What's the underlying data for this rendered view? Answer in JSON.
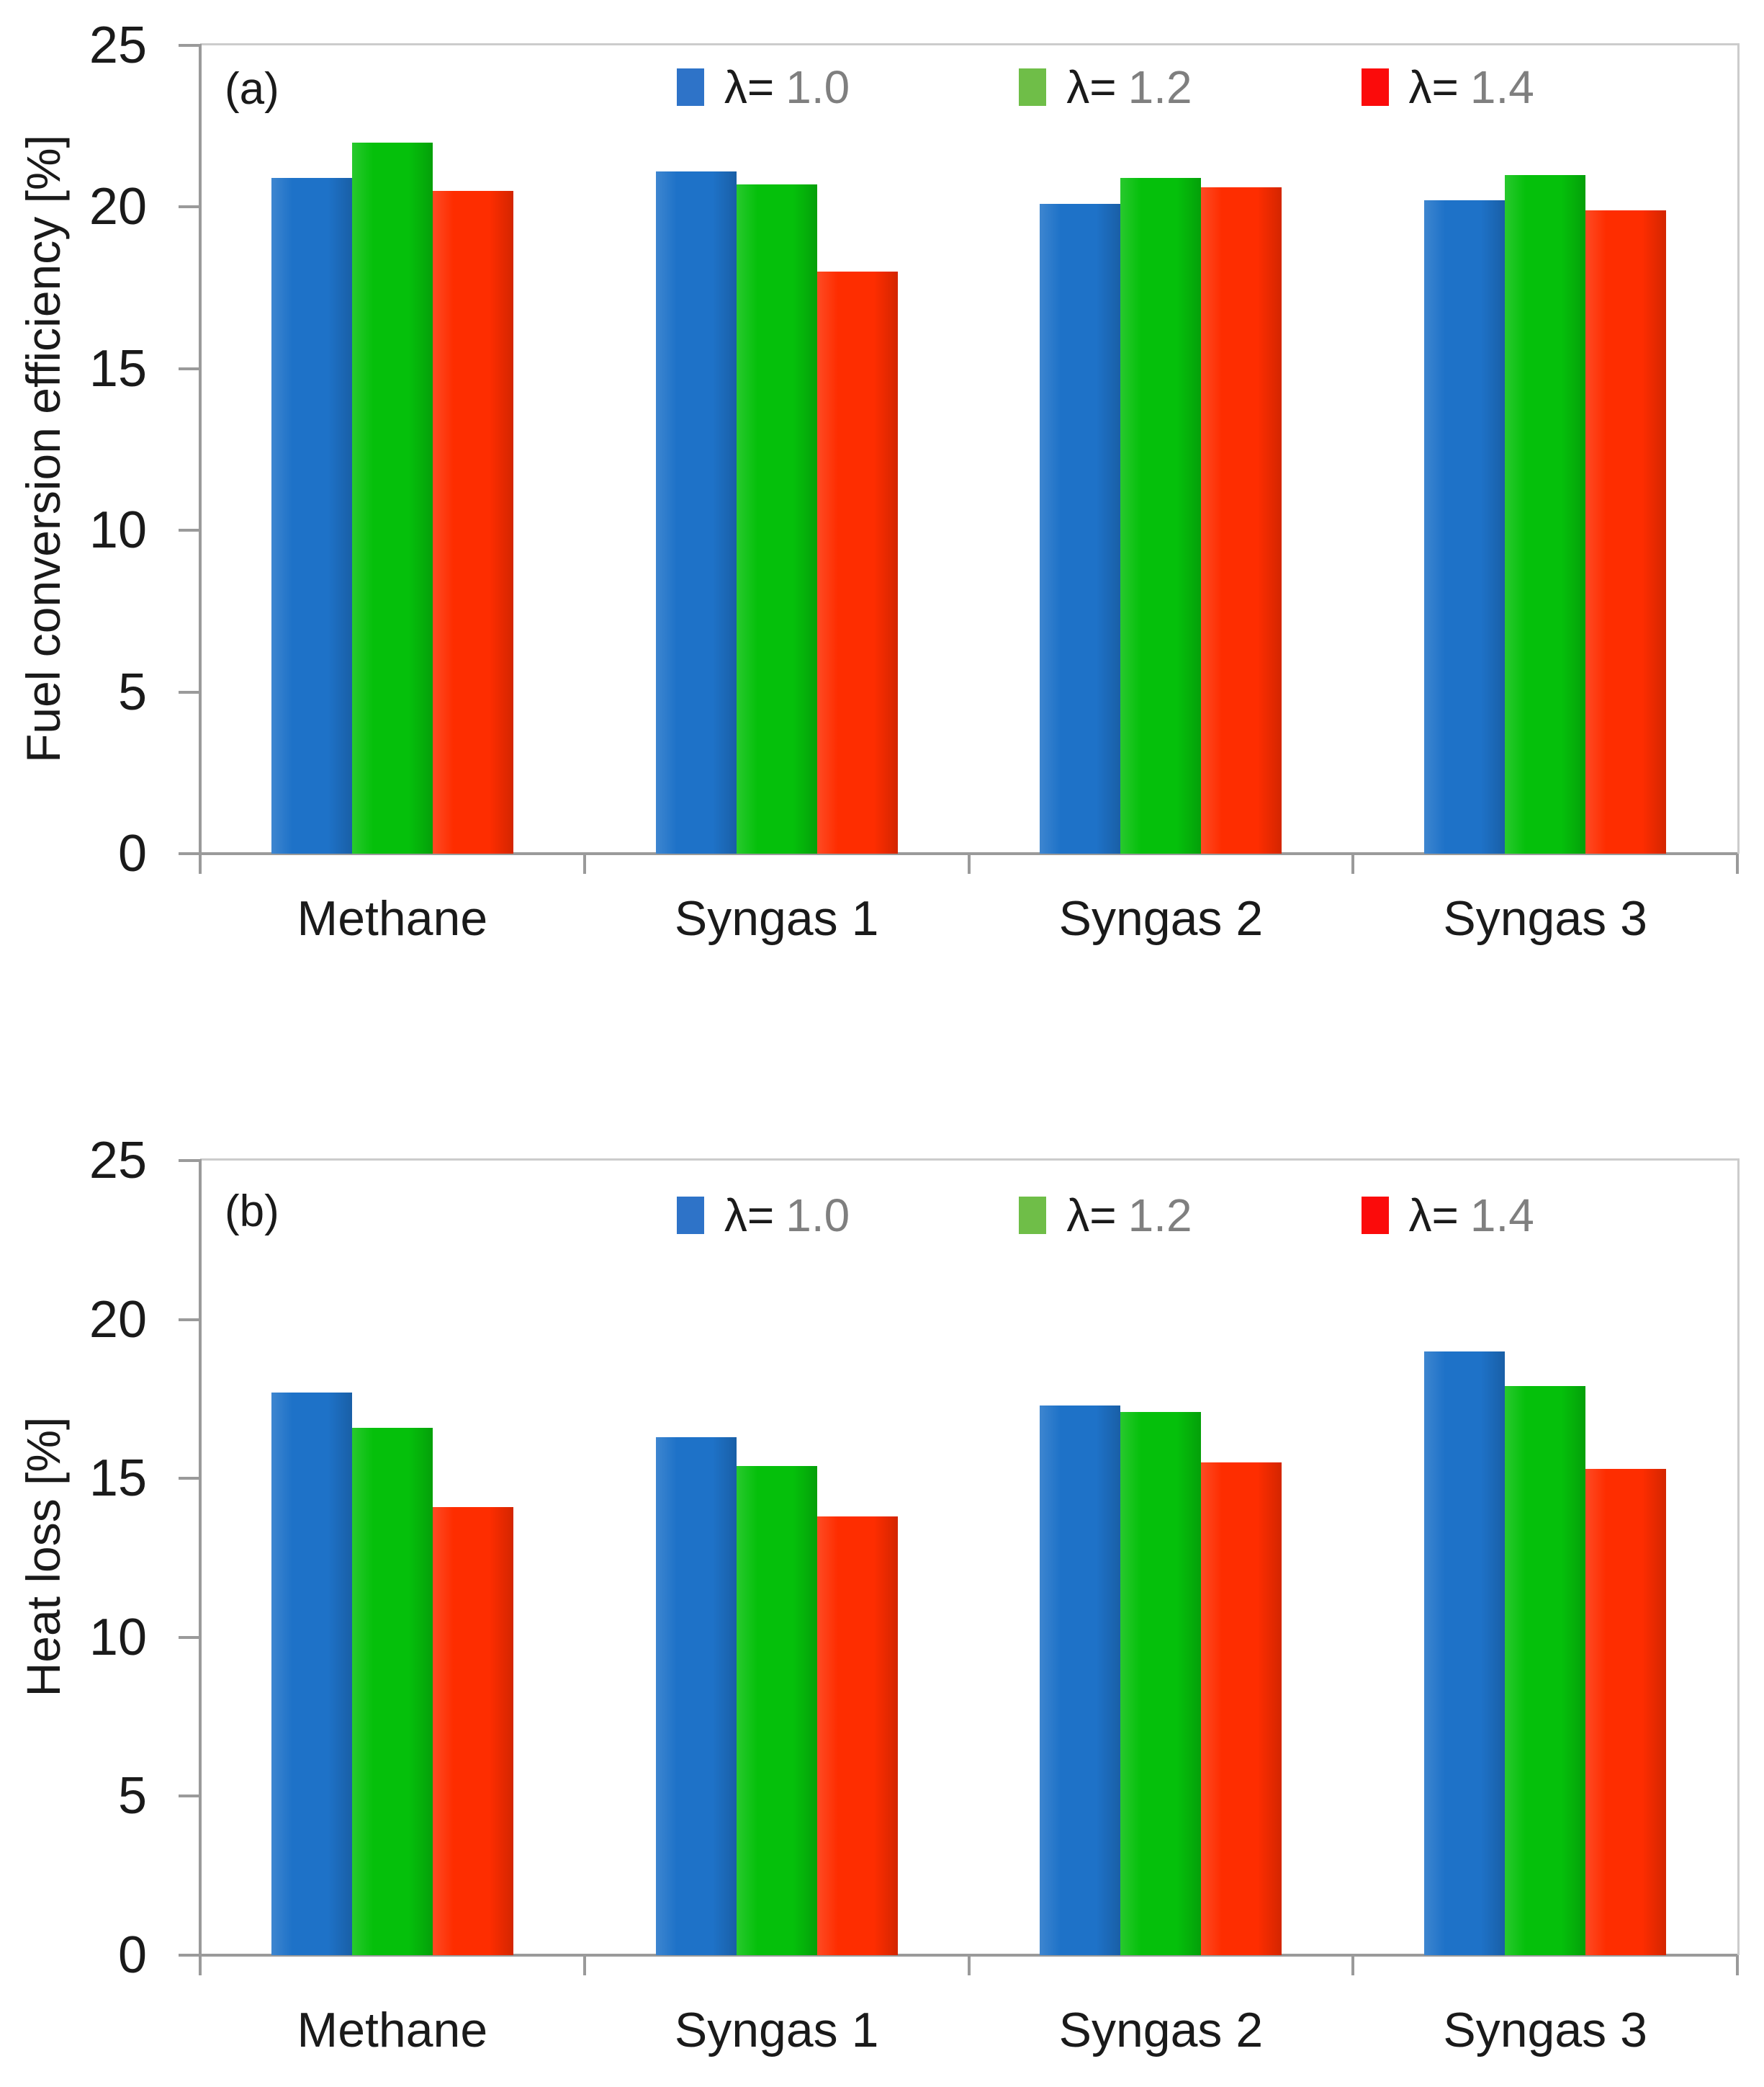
{
  "figure": {
    "background": "#FFFFFF",
    "axis_color": "#9A9A9A",
    "plot_border_color": "#CCCCCC",
    "tick_label_color": "#1A1A1A",
    "legend_value_color": "#7F7F7F"
  },
  "chart_data": [
    {
      "type": "bar",
      "panel_label": "(a)",
      "title": "",
      "xlabel": "",
      "ylabel": "Fuel conversion efficiency [%]",
      "ylim": [
        0,
        25
      ],
      "yticks": [
        0,
        5,
        10,
        15,
        20,
        25
      ],
      "grid": false,
      "legend_position": "top-inside",
      "categories": [
        "Methane",
        "Syngas 1",
        "Syngas 2",
        "Syngas 3"
      ],
      "series": [
        {
          "name": "λ= 1.0",
          "color": "#1E72C8",
          "values": [
            20.9,
            21.1,
            20.1,
            20.2
          ]
        },
        {
          "name": "λ= 1.2",
          "color": "#05C00B",
          "values": [
            22.0,
            20.7,
            20.9,
            21.0
          ]
        },
        {
          "name": "λ= 1.4",
          "color": "#FE2D00",
          "values": [
            20.5,
            18.0,
            20.6,
            19.9
          ]
        }
      ],
      "legend": [
        {
          "prefix": "λ=",
          "value": "1.0",
          "marker_color": "#2E73C8"
        },
        {
          "prefix": "λ=",
          "value": "1.2",
          "marker_color": "#6FBE48"
        },
        {
          "prefix": "λ=",
          "value": "1.4",
          "marker_color": "#FB0B0B"
        }
      ]
    },
    {
      "type": "bar",
      "panel_label": "(b)",
      "title": "",
      "xlabel": "",
      "ylabel": "Heat loss [%]",
      "ylim": [
        0,
        25
      ],
      "yticks": [
        0,
        5,
        10,
        15,
        20,
        25
      ],
      "grid": false,
      "legend_position": "top-inside",
      "categories": [
        "Methane",
        "Syngas 1",
        "Syngas 2",
        "Syngas 3"
      ],
      "series": [
        {
          "name": "λ= 1.0",
          "color": "#1E72C8",
          "values": [
            17.7,
            16.3,
            17.3,
            19.0
          ]
        },
        {
          "name": "λ= 1.2",
          "color": "#05C00B",
          "values": [
            16.6,
            15.4,
            17.1,
            17.9
          ]
        },
        {
          "name": "λ= 1.4",
          "color": "#FE2D00",
          "values": [
            14.1,
            13.8,
            15.5,
            15.3
          ]
        }
      ],
      "legend": [
        {
          "prefix": "λ=",
          "value": "1.0",
          "marker_color": "#2E73C8"
        },
        {
          "prefix": "λ=",
          "value": "1.2",
          "marker_color": "#6FBE48"
        },
        {
          "prefix": "λ=",
          "value": "1.4",
          "marker_color": "#FB0B0B"
        }
      ]
    }
  ]
}
